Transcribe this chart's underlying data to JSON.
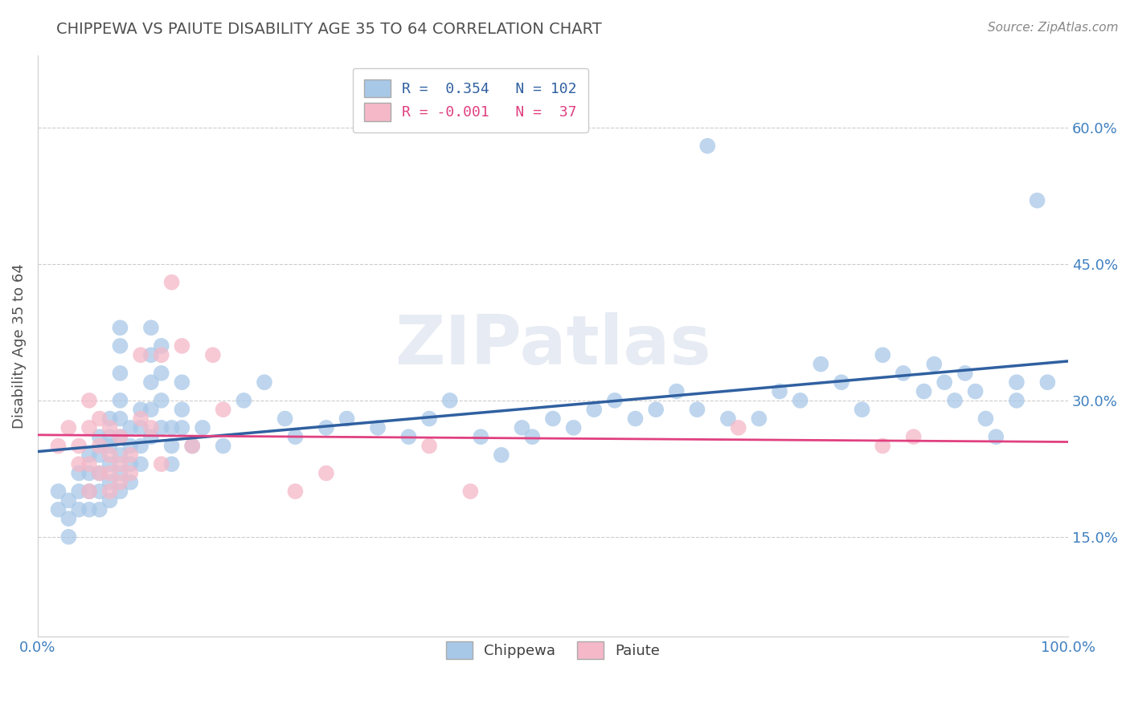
{
  "title": "CHIPPEWA VS PAIUTE DISABILITY AGE 35 TO 64 CORRELATION CHART",
  "source": "Source: ZipAtlas.com",
  "ylabel": "Disability Age 35 to 64",
  "chippewa_R": 0.354,
  "chippewa_N": 102,
  "paiute_R": -0.001,
  "paiute_N": 37,
  "chippewa_color": "#a8c8e8",
  "paiute_color": "#f4b8c8",
  "chippewa_line_color": "#3060a0",
  "paiute_line_color": "#e04080",
  "bg_color": "#ffffff",
  "grid_color": "#cccccc",
  "ytick_labels": [
    "15.0%",
    "30.0%",
    "45.0%",
    "60.0%"
  ],
  "ytick_values": [
    0.15,
    0.3,
    0.45,
    0.6
  ],
  "xlim": [
    0.0,
    1.0
  ],
  "ylim": [
    0.04,
    0.68
  ],
  "title_color": "#505050",
  "axis_label_color": "#4080c0",
  "chippewa_points": [
    [
      0.02,
      0.2
    ],
    [
      0.02,
      0.18
    ],
    [
      0.03,
      0.19
    ],
    [
      0.03,
      0.17
    ],
    [
      0.03,
      0.15
    ],
    [
      0.04,
      0.22
    ],
    [
      0.04,
      0.2
    ],
    [
      0.04,
      0.18
    ],
    [
      0.05,
      0.24
    ],
    [
      0.05,
      0.22
    ],
    [
      0.05,
      0.2
    ],
    [
      0.05,
      0.18
    ],
    [
      0.06,
      0.26
    ],
    [
      0.06,
      0.24
    ],
    [
      0.06,
      0.22
    ],
    [
      0.06,
      0.2
    ],
    [
      0.06,
      0.18
    ],
    [
      0.07,
      0.28
    ],
    [
      0.07,
      0.26
    ],
    [
      0.07,
      0.25
    ],
    [
      0.07,
      0.23
    ],
    [
      0.07,
      0.21
    ],
    [
      0.07,
      0.19
    ],
    [
      0.08,
      0.38
    ],
    [
      0.08,
      0.36
    ],
    [
      0.08,
      0.33
    ],
    [
      0.08,
      0.3
    ],
    [
      0.08,
      0.28
    ],
    [
      0.08,
      0.26
    ],
    [
      0.08,
      0.24
    ],
    [
      0.08,
      0.22
    ],
    [
      0.08,
      0.2
    ],
    [
      0.09,
      0.27
    ],
    [
      0.09,
      0.25
    ],
    [
      0.09,
      0.23
    ],
    [
      0.09,
      0.21
    ],
    [
      0.1,
      0.29
    ],
    [
      0.1,
      0.27
    ],
    [
      0.1,
      0.25
    ],
    [
      0.1,
      0.23
    ],
    [
      0.11,
      0.38
    ],
    [
      0.11,
      0.35
    ],
    [
      0.11,
      0.32
    ],
    [
      0.11,
      0.29
    ],
    [
      0.11,
      0.26
    ],
    [
      0.12,
      0.36
    ],
    [
      0.12,
      0.33
    ],
    [
      0.12,
      0.3
    ],
    [
      0.12,
      0.27
    ],
    [
      0.13,
      0.27
    ],
    [
      0.13,
      0.25
    ],
    [
      0.13,
      0.23
    ],
    [
      0.14,
      0.32
    ],
    [
      0.14,
      0.29
    ],
    [
      0.14,
      0.27
    ],
    [
      0.15,
      0.25
    ],
    [
      0.16,
      0.27
    ],
    [
      0.18,
      0.25
    ],
    [
      0.2,
      0.3
    ],
    [
      0.22,
      0.32
    ],
    [
      0.24,
      0.28
    ],
    [
      0.25,
      0.26
    ],
    [
      0.28,
      0.27
    ],
    [
      0.3,
      0.28
    ],
    [
      0.33,
      0.27
    ],
    [
      0.36,
      0.26
    ],
    [
      0.38,
      0.28
    ],
    [
      0.4,
      0.3
    ],
    [
      0.43,
      0.26
    ],
    [
      0.45,
      0.24
    ],
    [
      0.47,
      0.27
    ],
    [
      0.48,
      0.26
    ],
    [
      0.5,
      0.28
    ],
    [
      0.52,
      0.27
    ],
    [
      0.54,
      0.29
    ],
    [
      0.56,
      0.3
    ],
    [
      0.58,
      0.28
    ],
    [
      0.6,
      0.29
    ],
    [
      0.62,
      0.31
    ],
    [
      0.64,
      0.29
    ],
    [
      0.65,
      0.58
    ],
    [
      0.67,
      0.28
    ],
    [
      0.7,
      0.28
    ],
    [
      0.72,
      0.31
    ],
    [
      0.74,
      0.3
    ],
    [
      0.76,
      0.34
    ],
    [
      0.78,
      0.32
    ],
    [
      0.8,
      0.29
    ],
    [
      0.82,
      0.35
    ],
    [
      0.84,
      0.33
    ],
    [
      0.86,
      0.31
    ],
    [
      0.87,
      0.34
    ],
    [
      0.88,
      0.32
    ],
    [
      0.89,
      0.3
    ],
    [
      0.9,
      0.33
    ],
    [
      0.91,
      0.31
    ],
    [
      0.92,
      0.28
    ],
    [
      0.93,
      0.26
    ],
    [
      0.95,
      0.32
    ],
    [
      0.95,
      0.3
    ],
    [
      0.97,
      0.52
    ],
    [
      0.98,
      0.32
    ]
  ],
  "paiute_points": [
    [
      0.02,
      0.25
    ],
    [
      0.03,
      0.27
    ],
    [
      0.04,
      0.25
    ],
    [
      0.04,
      0.23
    ],
    [
      0.05,
      0.3
    ],
    [
      0.05,
      0.27
    ],
    [
      0.05,
      0.23
    ],
    [
      0.05,
      0.2
    ],
    [
      0.06,
      0.28
    ],
    [
      0.06,
      0.25
    ],
    [
      0.06,
      0.22
    ],
    [
      0.07,
      0.27
    ],
    [
      0.07,
      0.24
    ],
    [
      0.07,
      0.22
    ],
    [
      0.07,
      0.2
    ],
    [
      0.08,
      0.26
    ],
    [
      0.08,
      0.23
    ],
    [
      0.08,
      0.21
    ],
    [
      0.09,
      0.24
    ],
    [
      0.09,
      0.22
    ],
    [
      0.1,
      0.35
    ],
    [
      0.1,
      0.28
    ],
    [
      0.11,
      0.27
    ],
    [
      0.12,
      0.35
    ],
    [
      0.12,
      0.23
    ],
    [
      0.13,
      0.43
    ],
    [
      0.14,
      0.36
    ],
    [
      0.15,
      0.25
    ],
    [
      0.17,
      0.35
    ],
    [
      0.18,
      0.29
    ],
    [
      0.25,
      0.2
    ],
    [
      0.28,
      0.22
    ],
    [
      0.38,
      0.25
    ],
    [
      0.42,
      0.2
    ],
    [
      0.68,
      0.27
    ],
    [
      0.82,
      0.25
    ],
    [
      0.85,
      0.26
    ]
  ]
}
